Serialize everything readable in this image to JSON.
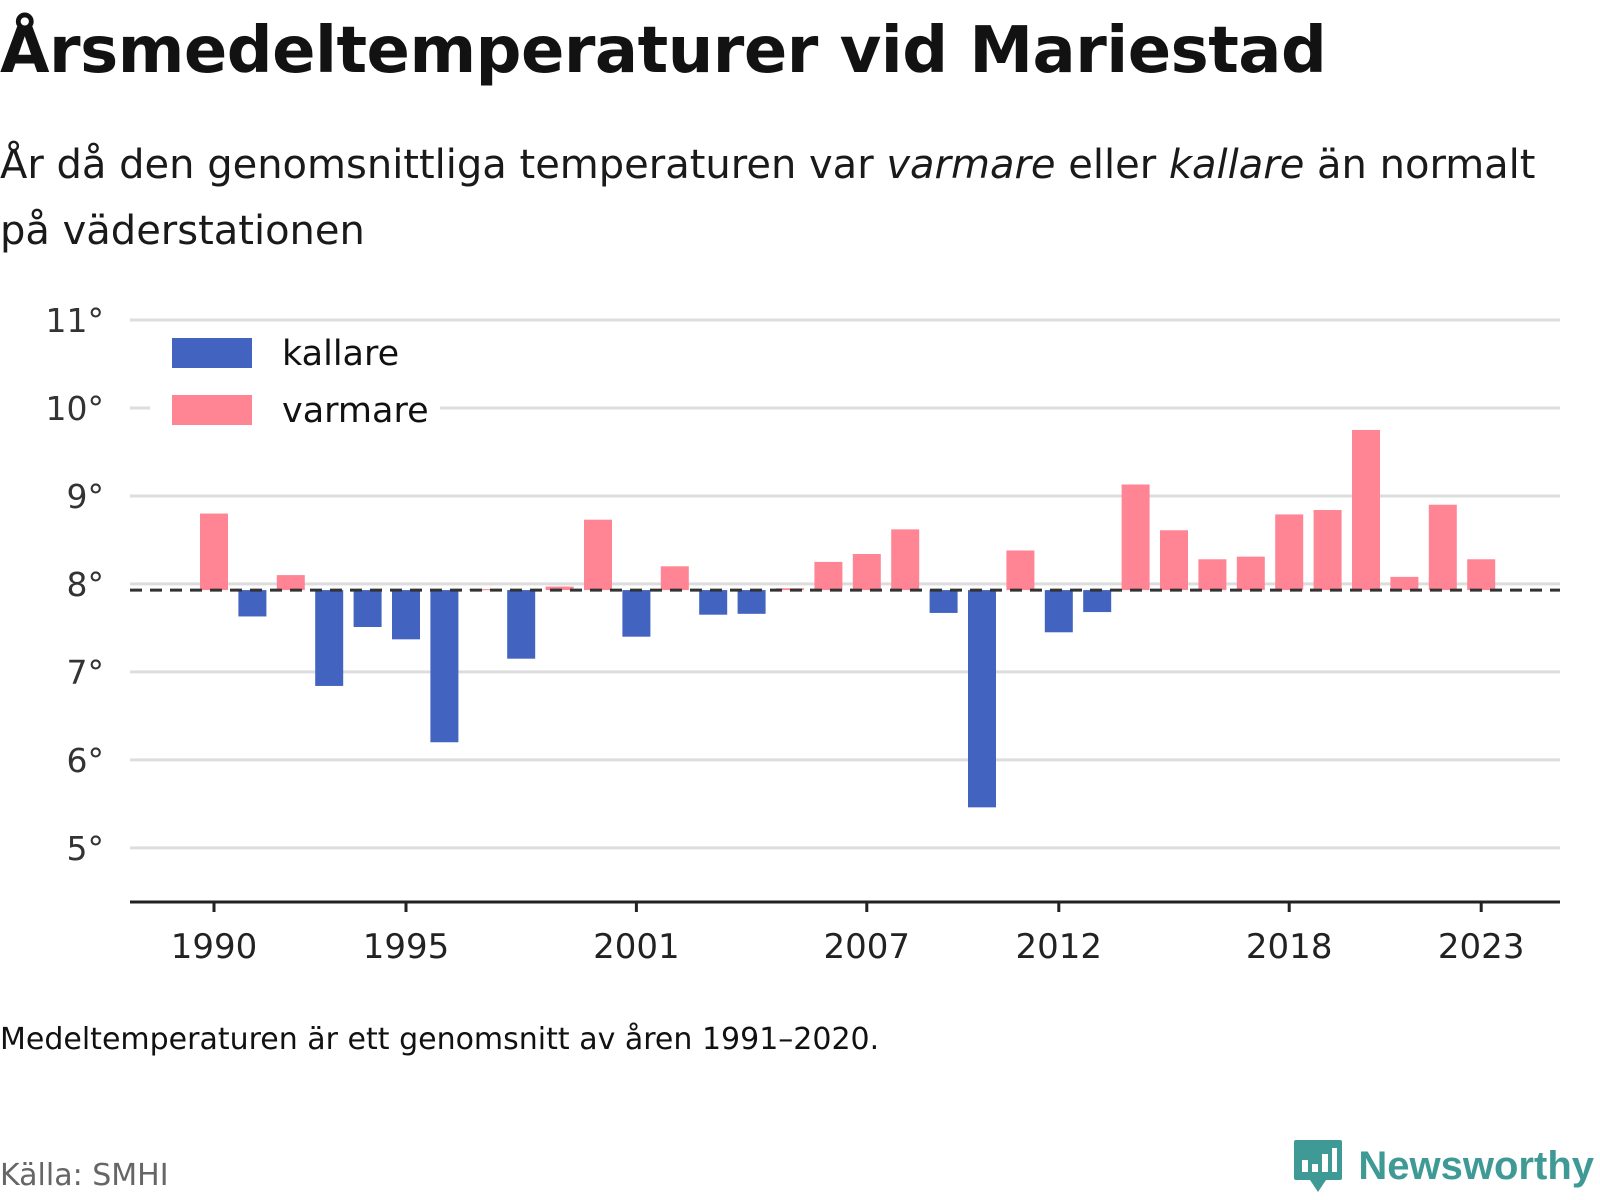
{
  "title": "Årsmedeltemperaturer vid Mariestad",
  "subtitle": {
    "pre": "År då den genomsnittliga temperaturen var ",
    "warm_word": "varmare",
    "mid": " eller ",
    "cold_word": "kallare",
    "post": " än normalt på väderstationen"
  },
  "note": "Medeltemperaturen är ett genomsnitt av åren 1991–2020.",
  "source": "Källa: SMHI",
  "brand": "Newsworthy",
  "colors": {
    "cold": "#4264c0",
    "warm": "#ff8595",
    "grid": "#dddddd",
    "axis": "#222222",
    "reference": "#333333",
    "brand": "#3f9a96"
  },
  "chart_data": {
    "type": "bar",
    "baseline": 7.93,
    "ylim": [
      4.6,
      11
    ],
    "yticks": [
      5,
      6,
      7,
      8,
      9,
      10,
      11
    ],
    "ytick_labels": [
      "5°",
      "6°",
      "7°",
      "8°",
      "9°",
      "10°",
      "11°"
    ],
    "xticks": [
      1990,
      1995,
      2001,
      2007,
      2012,
      2018,
      2023
    ],
    "xtick_labels": [
      "1990",
      "1995",
      "2001",
      "2007",
      "2012",
      "2018",
      "2023"
    ],
    "legend": {
      "placement": "top-left",
      "entries": [
        {
          "key": "cold",
          "label": "kallare"
        },
        {
          "key": "warm",
          "label": "varmare"
        }
      ]
    },
    "x": [
      1990,
      1991,
      1992,
      1993,
      1994,
      1995,
      1996,
      1997,
      1998,
      1999,
      2000,
      2001,
      2002,
      2003,
      2004,
      2005,
      2006,
      2007,
      2008,
      2009,
      2010,
      2011,
      2012,
      2013,
      2014,
      2015,
      2016,
      2017,
      2018,
      2019,
      2020,
      2021,
      2022,
      2023
    ],
    "values": [
      8.8,
      7.63,
      8.1,
      6.84,
      7.51,
      7.37,
      6.2,
      7.94,
      7.15,
      7.97,
      8.73,
      7.4,
      8.2,
      7.65,
      7.66,
      7.95,
      8.25,
      8.34,
      8.62,
      7.67,
      5.46,
      8.38,
      7.45,
      7.68,
      9.13,
      8.61,
      8.28,
      8.31,
      8.79,
      8.84,
      9.75,
      8.08,
      8.9,
      8.28
    ]
  }
}
